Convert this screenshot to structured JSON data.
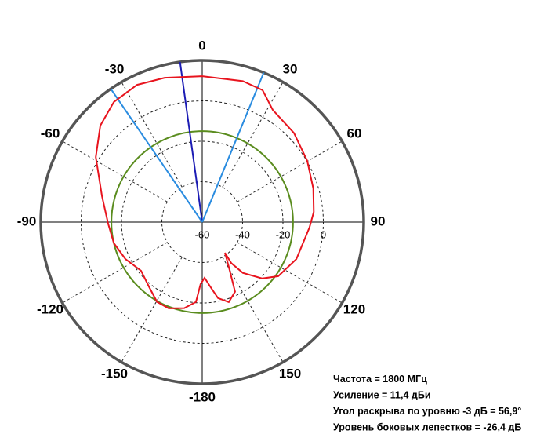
{
  "chart_data": {
    "type": "polar",
    "thetaticks": [
      0,
      30,
      60,
      90,
      120,
      150,
      -180,
      -150,
      -120,
      -90,
      -60,
      -30
    ],
    "rlim": [
      -60,
      20
    ],
    "rticks": [
      -60,
      -40,
      -20,
      0
    ],
    "series": [
      {
        "color": "#e8141e",
        "theta": [
          0,
          16.1,
          24.6,
          32.2,
          45.9,
          59.8,
          73.2,
          84.8,
          92.9,
          111.4,
          125.4,
          133.1,
          141.3,
          144.6,
          143.4,
          149.2,
          154.7,
          161.6,
          168.3,
          173,
          177.6,
          -178.5,
          -175.5,
          -168.2,
          -158.7,
          -150.4,
          -140.3,
          -128.5,
          -115.6,
          -103.4,
          -91,
          -75.5,
          -58.6,
          -46.6,
          -36.4,
          -25.4,
          -14.6
        ],
        "values": [
          12.2,
          12.6,
          11.8,
          5.6,
          3.3,
          0.2,
          -2.5,
          -4.5,
          -6.8,
          -9.9,
          -13.8,
          -19.2,
          -27.8,
          -35.1,
          -41.1,
          -34.4,
          -21.9,
          -18.3,
          -21.6,
          -27.9,
          -32.4,
          -29.3,
          -20.4,
          -16.5,
          -14.2,
          -14.6,
          -18.6,
          -21.3,
          -17.8,
          -15,
          -13.4,
          -8.7,
          1.8,
          9.5,
          13.8,
          15.2,
          13.8
        ]
      }
    ],
    "reference_circle": {
      "value": -15,
      "color": "#5a8c1e"
    },
    "beam_lines": [
      {
        "angle": -7.9,
        "color": "#1c1cb4"
      },
      {
        "angle": -34.5,
        "color": "#2a8ce0"
      },
      {
        "angle": 22.4,
        "color": "#2a8ce0"
      }
    ],
    "annotations": [
      "Частота = 1800 МГц",
      "Усиление = 11,4 дБи",
      "Угол раскрыва по уровню -3 дБ = 56,9°",
      "Уровень боковых лепестков = -26,4 дБ"
    ]
  }
}
